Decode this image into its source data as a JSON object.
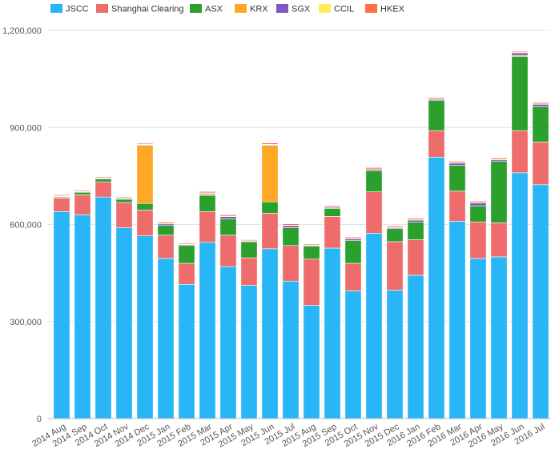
{
  "chart_data": {
    "type": "bar",
    "stacked": true,
    "title": "",
    "xlabel": "",
    "ylabel": "",
    "ylim": [
      0,
      1200000
    ],
    "yticks": [
      0,
      300000,
      600000,
      900000,
      1200000
    ],
    "ytick_labels": [
      "0",
      "300,000",
      "600,000",
      "900,000",
      "1,200,000"
    ],
    "grid": true,
    "legend_position": "top-left",
    "categories": [
      "2014 Aug",
      "2014 Sep",
      "2014 Oct",
      "2014 Nov",
      "2014 Dec",
      "2015 Jan",
      "2015 Feb",
      "2015 Mar",
      "2015 Apr",
      "2015 May",
      "2015 Jun",
      "2015 Jul",
      "2015 Aug",
      "2015 Sep",
      "2015 Oct",
      "2015 Nov",
      "2015 Dec",
      "2016 Jan",
      "2016 Feb",
      "2016 Mar",
      "2016 Apr",
      "2016 May",
      "2016 Jun",
      "2016 Jul"
    ],
    "series": [
      {
        "name": "JSCC",
        "color": "#29b6f6",
        "values": [
          640000,
          630000,
          685000,
          590000,
          565000,
          495000,
          415000,
          545000,
          470000,
          412000,
          525000,
          425000,
          350000,
          527000,
          395000,
          573000,
          397000,
          443000,
          808000,
          610000,
          495000,
          500000,
          760000,
          723000
        ]
      },
      {
        "name": "Shanghai Clearing",
        "color": "#ef6c6c",
        "values": [
          42000,
          62000,
          47000,
          78000,
          80000,
          72000,
          65000,
          95000,
          97000,
          85000,
          110000,
          110000,
          143000,
          98000,
          85000,
          128000,
          150000,
          110000,
          82000,
          93000,
          113000,
          105000,
          130000,
          132000
        ]
      },
      {
        "name": "ASX",
        "color": "#2ca02c",
        "values": [
          3000,
          8000,
          9000,
          10000,
          20000,
          30000,
          55000,
          50000,
          50000,
          50000,
          35000,
          55000,
          40000,
          25000,
          70000,
          65000,
          40000,
          55000,
          93000,
          80000,
          50000,
          190000,
          230000,
          110000
        ]
      },
      {
        "name": "KRX",
        "color": "#ffa726",
        "values": [
          2000,
          0,
          0,
          0,
          180000,
          0,
          0,
          4000,
          0,
          0,
          175000,
          0,
          0,
          0,
          0,
          0,
          0,
          0,
          0,
          0,
          0,
          0,
          3000,
          0
        ]
      },
      {
        "name": "SGX",
        "color": "#7e57c2",
        "values": [
          1000,
          1000,
          2000,
          3000,
          2000,
          5000,
          3000,
          3000,
          8000,
          2000,
          2000,
          7000,
          3000,
          3000,
          6000,
          5000,
          3000,
          6000,
          4000,
          7000,
          9000,
          5000,
          8000,
          7000
        ]
      },
      {
        "name": "CCIL",
        "color": "#ffee58",
        "values": [
          1000,
          1000,
          1000,
          1000,
          1000,
          1000,
          1000,
          1000,
          1000,
          1000,
          1000,
          1000,
          1000,
          1000,
          1000,
          1000,
          1000,
          1000,
          1000,
          1000,
          1000,
          1000,
          1000,
          1000
        ]
      },
      {
        "name": "HKEX",
        "color": "#ff7043",
        "values": [
          3000,
          3000,
          3000,
          3000,
          3000,
          4000,
          3000,
          4000,
          4000,
          3000,
          4000,
          4000,
          3000,
          4000,
          4000,
          4000,
          4000,
          4000,
          4000,
          4000,
          4000,
          4000,
          3000,
          4000
        ]
      }
    ]
  }
}
